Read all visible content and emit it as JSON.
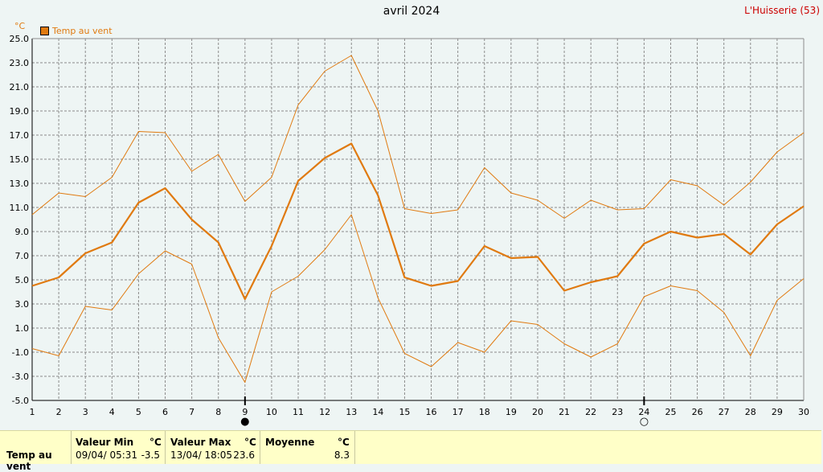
{
  "title": "avril 2024",
  "station": "L'Huisserie (53)",
  "unit_label": "°C",
  "chart_data": {
    "type": "line",
    "x": [
      1,
      2,
      3,
      4,
      5,
      6,
      7,
      8,
      9,
      10,
      11,
      12,
      13,
      14,
      15,
      16,
      17,
      18,
      19,
      20,
      21,
      22,
      23,
      24,
      25,
      26,
      27,
      28,
      29,
      30
    ],
    "ylim": [
      -5.0,
      25.0
    ],
    "yticks": [
      "-5.0",
      "-3.0",
      "-1.0",
      "1.0",
      "3.0",
      "5.0",
      "7.0",
      "9.0",
      "11.0",
      "13.0",
      "15.0",
      "17.0",
      "19.0",
      "21.0",
      "23.0",
      "25.0"
    ],
    "grid": true,
    "legend_position": "top-left",
    "series": [
      {
        "name": "Temp au vent",
        "values": [
          4.5,
          5.2,
          7.2,
          8.1,
          11.4,
          12.6,
          10.0,
          8.1,
          3.4,
          7.8,
          13.2,
          15.1,
          16.3,
          12.0,
          5.2,
          4.5,
          4.9,
          7.8,
          6.8,
          6.9,
          4.1,
          4.8,
          5.3,
          8.0,
          9.0,
          8.5,
          8.8,
          7.1,
          9.6,
          11.1
        ]
      },
      {
        "values": [
          10.4,
          12.2,
          11.9,
          13.5,
          17.3,
          17.2,
          14.0,
          15.4,
          11.5,
          13.5,
          19.5,
          22.3,
          23.6,
          19.0,
          10.9,
          10.5,
          10.8,
          14.3,
          12.2,
          11.6,
          10.1,
          11.6,
          10.8,
          10.9,
          13.3,
          12.8,
          11.2,
          13.1,
          15.6,
          17.2
        ]
      },
      {
        "values": [
          -0.7,
          -1.3,
          2.8,
          2.5,
          5.5,
          7.4,
          6.3,
          0.2,
          -3.5,
          4.0,
          5.3,
          7.5,
          10.4,
          3.5,
          -1.1,
          -2.2,
          -0.2,
          -1.0,
          1.6,
          1.3,
          -0.3,
          -1.4,
          -0.3,
          3.6,
          4.5,
          4.1,
          2.3,
          -1.3,
          3.3,
          5.1
        ]
      }
    ],
    "markers": [
      {
        "x": 9,
        "label": "●"
      },
      {
        "x": 24,
        "label": "○"
      }
    ],
    "colors": {
      "series": "#e07a10",
      "grid": "#8c8c8c",
      "axis": "#000000"
    }
  },
  "stats": {
    "row_label": "Temp au vent",
    "min_header": "Valeur Min",
    "max_header": "Valeur Max",
    "avg_header": "Moyenne",
    "unit": "°C",
    "min_date": "09/04/  05:31",
    "min_value": "-3.5",
    "max_date": "13/04/  18:05",
    "max_value": "23.6",
    "avg_value": "8.3"
  }
}
